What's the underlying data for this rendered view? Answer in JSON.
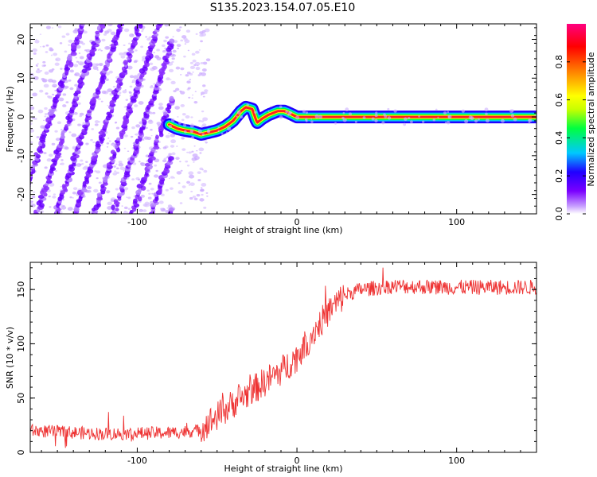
{
  "figure": {
    "title": "S135.2023.154.07.05.E10"
  },
  "chart_data": [
    {
      "type": "heatmap",
      "xlabel": "Height of straight line (km)",
      "ylabel": "Frequency (Hz)",
      "xlim": [
        -167,
        150
      ],
      "ylim": [
        -25,
        24
      ],
      "xticks": [
        -100,
        0,
        100
      ],
      "yticks": [
        -20,
        -10,
        0,
        10,
        20
      ],
      "colorbar": {
        "label": "Normalized spectral amplitude",
        "range": [
          0,
          1
        ],
        "ticks": [
          0.0,
          0.2,
          0.4,
          0.6,
          0.8
        ],
        "colors": [
          "#ffffff",
          "#c8a0ff",
          "#7a00ff",
          "#2000ff",
          "#00c8ff",
          "#00ff40",
          "#c8ff00",
          "#ffff00",
          "#ff8000",
          "#ff0000",
          "#ff0080"
        ]
      },
      "ridge": {
        "x": [
          -80,
          -75,
          -70,
          -65,
          -60,
          -55,
          -50,
          -45,
          -40,
          -35,
          -32,
          -28,
          -25,
          -22,
          -18,
          -15,
          -12,
          -8,
          -5,
          0,
          10,
          30,
          60,
          100,
          150
        ],
        "y": [
          -2,
          -3,
          -3.5,
          -3.8,
          -4.5,
          -4,
          -3.5,
          -2.5,
          -1,
          1.5,
          2.5,
          2,
          -1.5,
          -0.5,
          0.5,
          1,
          1.5,
          1.5,
          1,
          0,
          0,
          0,
          0,
          0,
          0
        ]
      },
      "stripes": {
        "x_start": [
          -175,
          -163,
          -151,
          -139,
          -127,
          -115,
          -103,
          -91,
          -79
        ],
        "slope_hz_per_km": 1.2
      }
    },
    {
      "type": "line",
      "xlabel": "Height of straight line (km)",
      "ylabel": "SNR (10 * v/v)",
      "xlim": [
        -167,
        150
      ],
      "ylim": [
        0,
        175
      ],
      "xticks": [
        -100,
        0,
        100
      ],
      "yticks": [
        0,
        50,
        100,
        150
      ],
      "series": [
        {
          "color": "#ee3333",
          "trend": {
            "x": [
              -167,
              -120,
              -80,
              -62,
              -50,
              -40,
              -30,
              -20,
              -10,
              0,
              10,
              20,
              30,
              40,
              60,
              100,
              150
            ],
            "y": [
              20,
              17,
              18,
              20,
              33,
              45,
              55,
              65,
              75,
              88,
              110,
              130,
              145,
              150,
              153,
              152,
              152
            ]
          }
        }
      ]
    }
  ]
}
